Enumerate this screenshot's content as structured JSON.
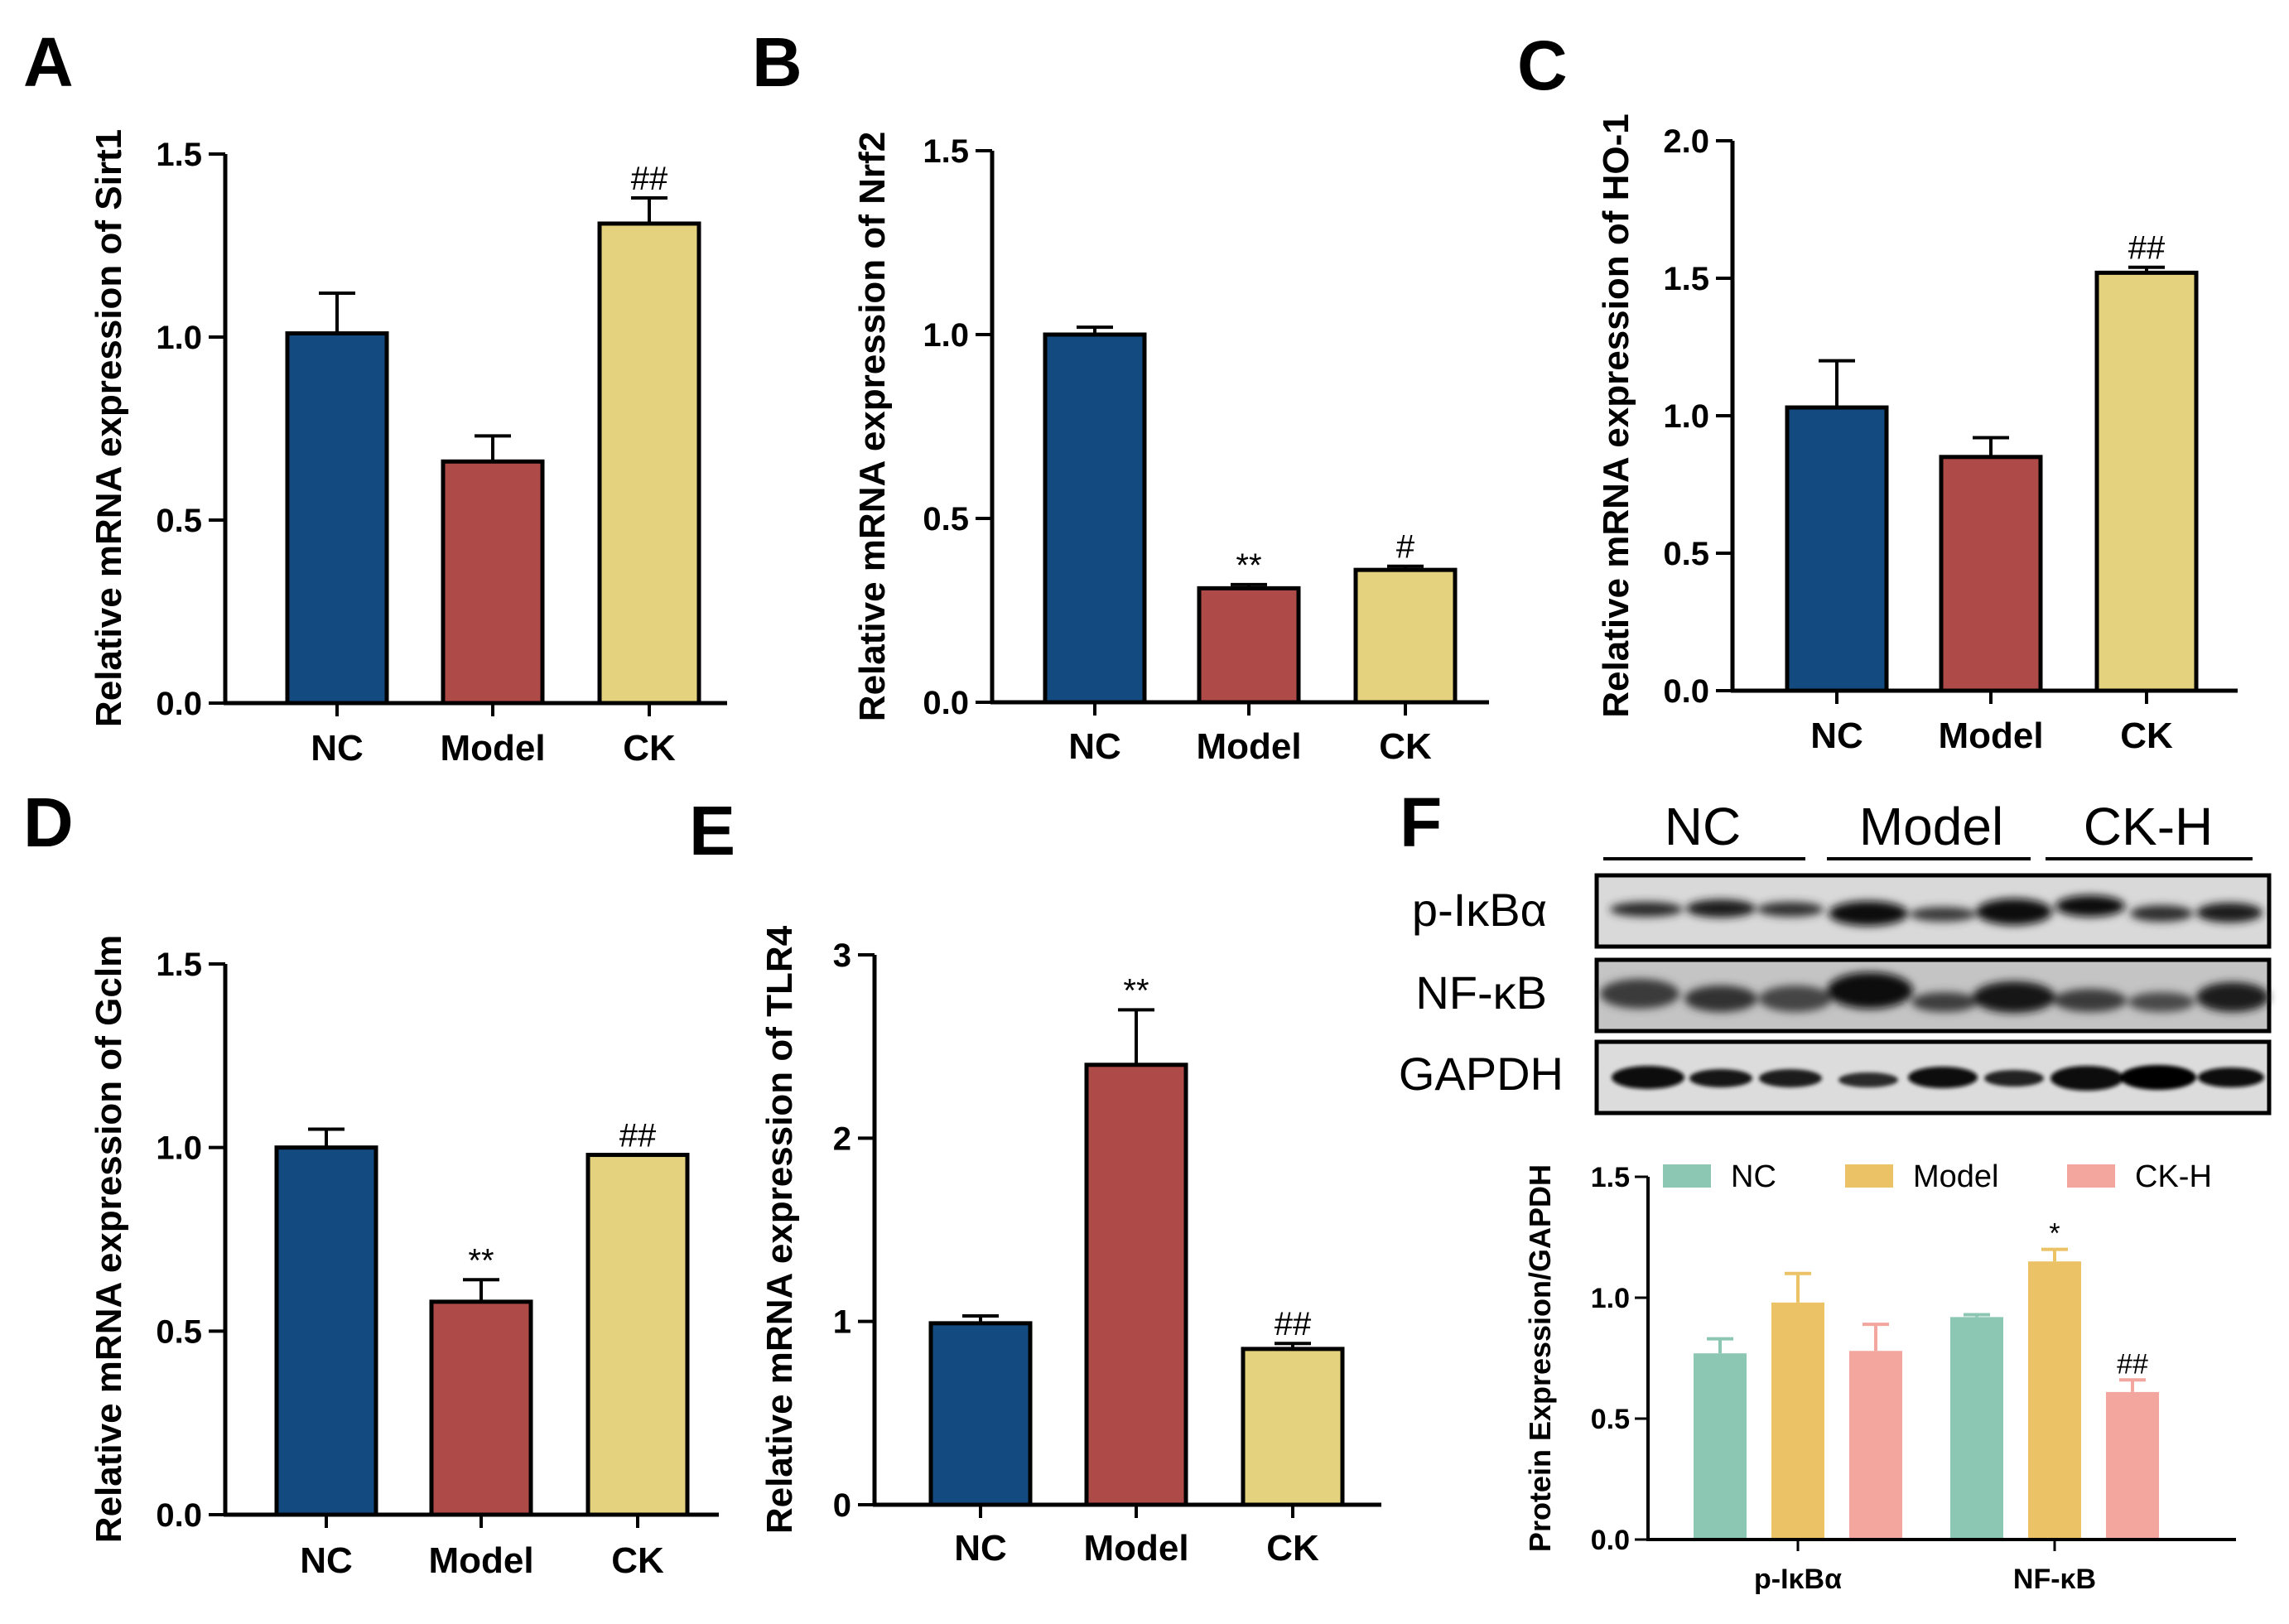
{
  "colors": {
    "nc": "#134b80",
    "model": "#ae4b48",
    "ck": "#e5d27f",
    "f_nc": "#8cc7b4",
    "f_model": "#ebc265",
    "f_ckh": "#f2a69e",
    "f_error": "#c2c2c2"
  },
  "chart_data": [
    {
      "panel": "A",
      "type": "bar",
      "title": "",
      "xlabel": "",
      "ylabel": "Relative mRNA expression of Sirt1",
      "categories": [
        "NC",
        "Model",
        "CK"
      ],
      "values": [
        1.01,
        0.66,
        1.31
      ],
      "errors": [
        0.11,
        0.07,
        0.07
      ],
      "significance": [
        "",
        "",
        "##"
      ],
      "ylim": [
        0,
        1.5
      ],
      "yticks": [
        0.0,
        0.5,
        1.0,
        1.5
      ],
      "ytick_labels": [
        "0.0",
        "0.5",
        "1.0",
        "1.5"
      ]
    },
    {
      "panel": "B",
      "type": "bar",
      "title": "",
      "xlabel": "",
      "ylabel": "Relative mRNA expression of Nrf2",
      "categories": [
        "NC",
        "Model",
        "CK"
      ],
      "values": [
        1.0,
        0.31,
        0.36
      ],
      "errors": [
        0.02,
        0.01,
        0.01
      ],
      "significance": [
        "",
        "**",
        "#"
      ],
      "ylim": [
        0,
        1.5
      ],
      "yticks": [
        0.0,
        0.5,
        1.0,
        1.5
      ],
      "ytick_labels": [
        "0.0",
        "0.5",
        "1.0",
        "1.5"
      ]
    },
    {
      "panel": "C",
      "type": "bar",
      "title": "",
      "xlabel": "",
      "ylabel": "Relative mRNA expression of HO-1",
      "categories": [
        "NC",
        "Model",
        "CK"
      ],
      "values": [
        1.03,
        0.85,
        1.52
      ],
      "errors": [
        0.17,
        0.07,
        0.02
      ],
      "significance": [
        "",
        "",
        "##"
      ],
      "ylim": [
        0,
        2.0
      ],
      "yticks": [
        0.0,
        0.5,
        1.0,
        1.5,
        2.0
      ],
      "ytick_labels": [
        "0.0",
        "0.5",
        "1.0",
        "1.5",
        "2.0"
      ]
    },
    {
      "panel": "D",
      "type": "bar",
      "title": "",
      "xlabel": "",
      "ylabel": "Relative mRNA expression of Gclm",
      "categories": [
        "NC",
        "Model",
        "CK"
      ],
      "values": [
        1.0,
        0.58,
        0.98
      ],
      "errors": [
        0.05,
        0.06,
        0.0
      ],
      "significance": [
        "",
        "**",
        "##"
      ],
      "ylim": [
        0,
        1.5
      ],
      "yticks": [
        0.0,
        0.5,
        1.0,
        1.5
      ],
      "ytick_labels": [
        "0.0",
        "0.5",
        "1.0",
        "1.5"
      ]
    },
    {
      "panel": "E",
      "type": "bar",
      "title": "",
      "xlabel": "",
      "ylabel": "Relative mRNA expression of TLR4",
      "categories": [
        "NC",
        "Model",
        "CK"
      ],
      "values": [
        0.99,
        2.4,
        0.85
      ],
      "errors": [
        0.04,
        0.3,
        0.03
      ],
      "significance": [
        "",
        "**",
        "##"
      ],
      "ylim": [
        0,
        3
      ],
      "yticks": [
        0,
        1,
        2,
        3
      ],
      "ytick_labels": [
        "0",
        "1",
        "2",
        "3"
      ]
    },
    {
      "panel": "F",
      "type": "bar",
      "title": "",
      "xlabel": "",
      "ylabel": "Protein Expression/GAPDH",
      "categories": [
        "p-IκBα",
        "NF-κB"
      ],
      "series": [
        {
          "name": "NC",
          "values": [
            0.77,
            0.92
          ],
          "errors": [
            0.06,
            0.01
          ],
          "significance": [
            "",
            ""
          ]
        },
        {
          "name": "Model",
          "values": [
            0.98,
            1.15
          ],
          "errors": [
            0.12,
            0.05
          ],
          "significance": [
            "",
            "*"
          ]
        },
        {
          "name": "CK-H",
          "values": [
            0.78,
            0.61
          ],
          "errors": [
            0.11,
            0.05
          ],
          "significance": [
            "",
            "##"
          ]
        }
      ],
      "legend": "top",
      "ylim": [
        0,
        1.5
      ],
      "yticks": [
        0.0,
        0.5,
        1.0,
        1.5
      ],
      "ytick_labels": [
        "0.0",
        "0.5",
        "1.0",
        "1.5"
      ]
    }
  ],
  "panel_letters": [
    "A",
    "B",
    "C",
    "D",
    "E",
    "F"
  ],
  "western_blot": {
    "groups": [
      "NC",
      "Model",
      "CK-H"
    ],
    "rows": [
      "p-IκBα",
      "NF-κB",
      "GAPDH"
    ]
  }
}
